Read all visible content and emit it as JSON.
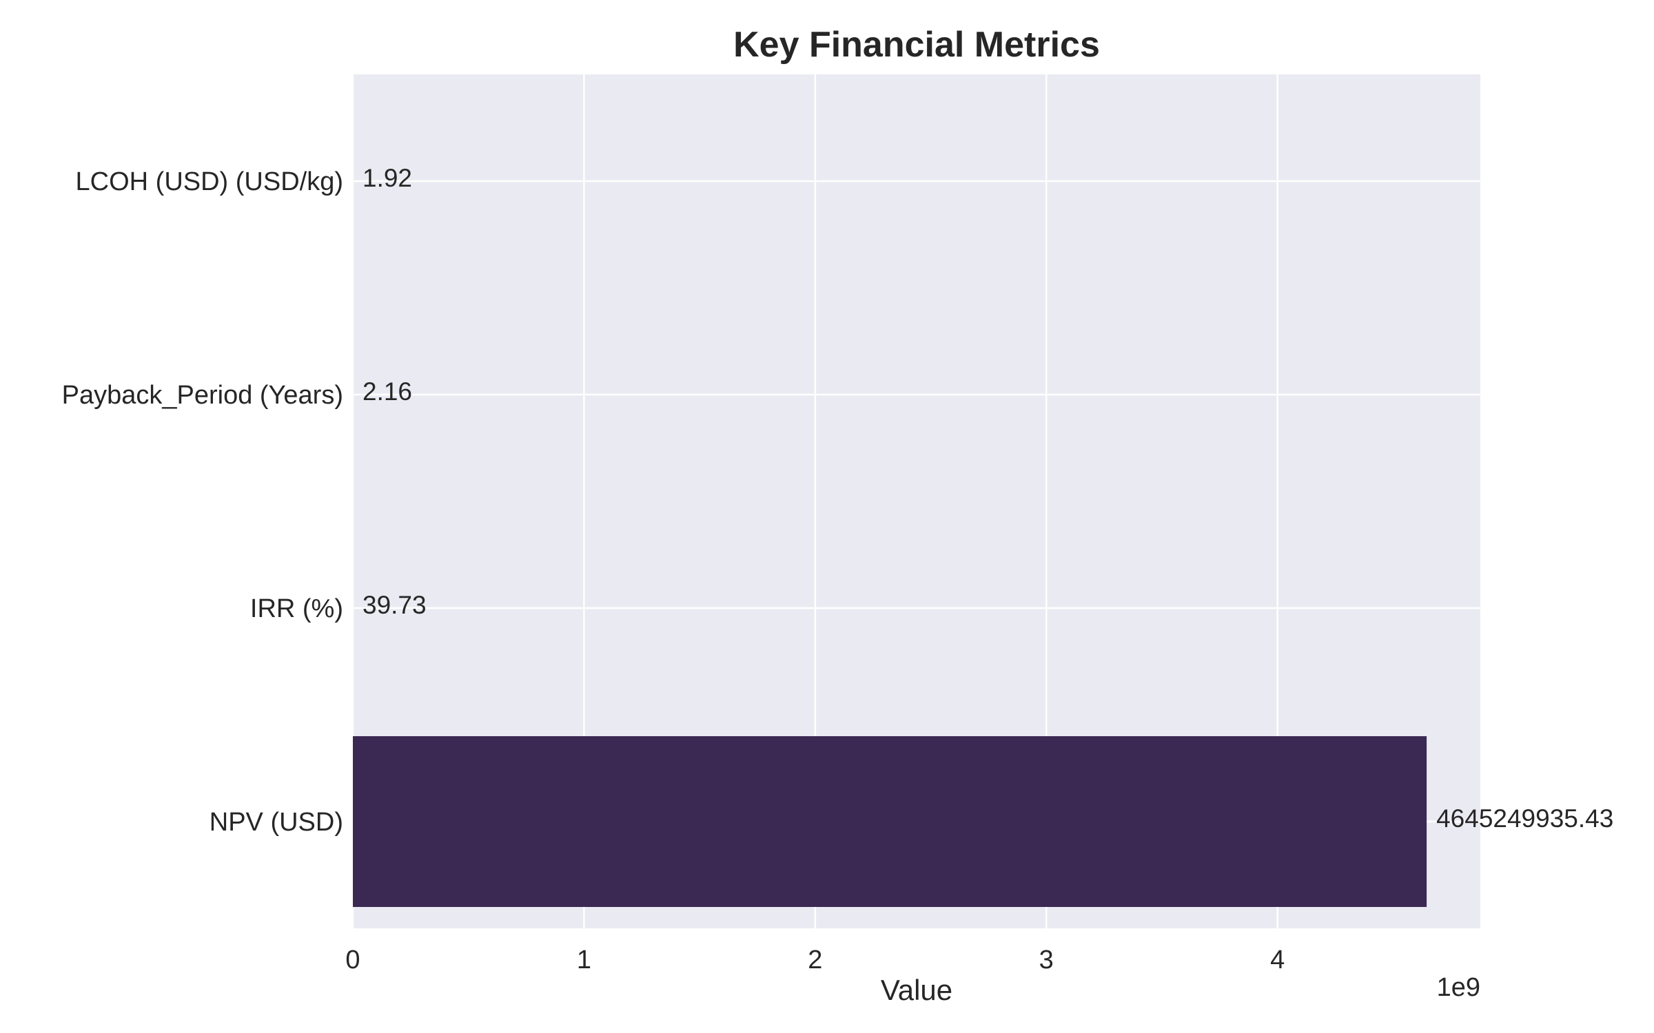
{
  "chart_data": {
    "type": "bar",
    "orientation": "horizontal",
    "title": "Key Financial Metrics",
    "xlabel": "Value",
    "ylabel": "",
    "x_offset_label": "1e9",
    "categories": [
      "NPV (USD)",
      "IRR (%)",
      "Payback_Period (Years)",
      "LCOH (USD) (USD/kg)"
    ],
    "values": [
      4645249935.43,
      39.73,
      2.16,
      1.92
    ],
    "value_labels": [
      "4645249935.43",
      "39.73",
      "2.16",
      "1.92"
    ],
    "x_ticks": [
      0,
      1,
      2,
      3,
      4
    ],
    "x_tick_labels": [
      "0",
      "1",
      "2",
      "3",
      "4"
    ],
    "x_tick_scale": 1000000000,
    "xlim": [
      0,
      4877512432.2
    ],
    "grid": true,
    "colors": {
      "bar": "#3b2953",
      "plot_background": "#eaeaf2",
      "grid": "#ffffff",
      "text": "#262626"
    }
  }
}
